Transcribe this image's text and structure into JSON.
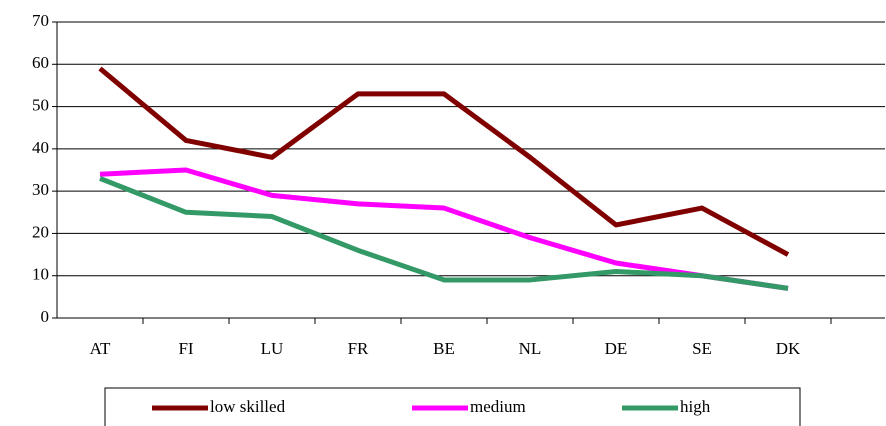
{
  "chart_data": {
    "type": "line",
    "categories": [
      "AT",
      "FI",
      "LU",
      "FR",
      "BE",
      "NL",
      "DE",
      "SE",
      "DK"
    ],
    "series": [
      {
        "name": "low skilled",
        "color": "#800000",
        "values": [
          59,
          42,
          38,
          53,
          53,
          38,
          22,
          26,
          15
        ]
      },
      {
        "name": "medium",
        "color": "#ff00ff",
        "values": [
          34,
          35,
          29,
          27,
          26,
          19,
          13,
          10,
          7
        ]
      },
      {
        "name": "high",
        "color": "#339966",
        "values": [
          33,
          25,
          24,
          16,
          9,
          9,
          11,
          10,
          7
        ]
      }
    ],
    "ylim": [
      0,
      70
    ],
    "yticks": [
      0,
      10,
      20,
      30,
      40,
      50,
      60,
      70
    ],
    "grid": true,
    "legend": "bottom"
  }
}
